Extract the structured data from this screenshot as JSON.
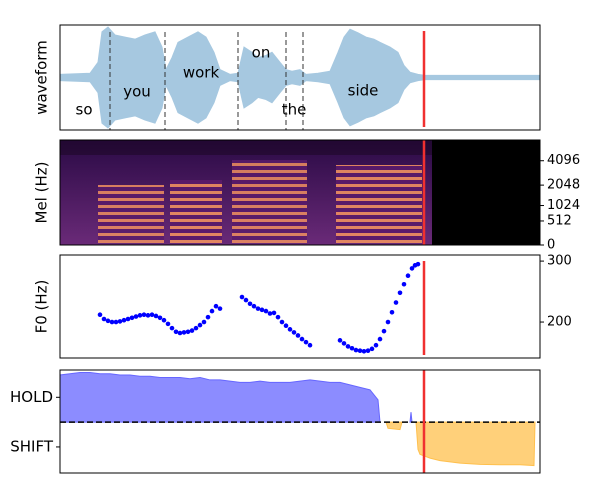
{
  "chart_data": [
    {
      "type": "waveform",
      "ylabel": "waveform",
      "color": "#a6c8e0",
      "xlim": [
        0,
        480
      ],
      "ylim": [
        -1,
        1
      ],
      "x": [
        0,
        30,
        38,
        42,
        48,
        55,
        65,
        75,
        85,
        95,
        102,
        106,
        112,
        118,
        128,
        138,
        146,
        154,
        160,
        170,
        178,
        184,
        192,
        198,
        206,
        212,
        220,
        226,
        232,
        240,
        246,
        258,
        270,
        278,
        284,
        290,
        298,
        306,
        314,
        320,
        330,
        338,
        344,
        350,
        358,
        365,
        480
      ],
      "values": [
        0.06,
        0.08,
        0.29,
        0.87,
        0.96,
        0.81,
        0.77,
        0.73,
        0.81,
        0.87,
        0.58,
        0.15,
        0.38,
        0.67,
        0.77,
        0.87,
        0.77,
        0.48,
        0.15,
        0.06,
        0.08,
        0.58,
        0.48,
        0.38,
        0.42,
        0.48,
        0.29,
        0.15,
        0.12,
        0.15,
        0.06,
        0.08,
        0.12,
        0.48,
        0.77,
        0.92,
        0.85,
        0.77,
        0.73,
        0.67,
        0.58,
        0.48,
        0.23,
        0.1,
        0.06,
        0.04,
        0.04
      ],
      "boundaries": [
        50,
        105,
        178,
        226,
        243
      ],
      "words": [
        {
          "text": "so",
          "x": 24
        },
        {
          "text": "you",
          "x": 77
        },
        {
          "text": "work",
          "x": 141
        },
        {
          "text": "on",
          "x": 201
        },
        {
          "text": "the",
          "x": 234
        },
        {
          "text": "side",
          "x": 303
        }
      ],
      "marker_x": 364,
      "marker_color": "#f03030"
    },
    {
      "type": "spectrogram",
      "ylabel": "Mel (Hz)",
      "xlim": [
        0,
        480
      ],
      "ylim": [
        0,
        7000
      ],
      "scale": "mel",
      "yticks": [
        0,
        512,
        1024,
        2048,
        4096
      ],
      "marker_x": 364,
      "marker_color": "#f03030"
    },
    {
      "type": "scatter",
      "ylabel": "F0 (Hz)",
      "color": "#0000ff",
      "xlim": [
        0,
        480
      ],
      "ylim": [
        141,
        310
      ],
      "yticks": [
        200,
        300
      ],
      "x": [
        40,
        44,
        48,
        52,
        56,
        60,
        64,
        68,
        72,
        76,
        80,
        84,
        88,
        92,
        96,
        100,
        104,
        108,
        112,
        116,
        120,
        124,
        128,
        132,
        136,
        140,
        144,
        148,
        152,
        156,
        160,
        182,
        186,
        190,
        194,
        198,
        202,
        206,
        210,
        214,
        218,
        222,
        226,
        230,
        234,
        238,
        242,
        246,
        250,
        280,
        284,
        288,
        292,
        296,
        300,
        304,
        308,
        312,
        316,
        320,
        324,
        328,
        332,
        336,
        340,
        344,
        348,
        352,
        355,
        358
      ],
      "values": [
        212,
        205,
        202,
        200,
        200,
        201,
        203,
        205,
        207,
        209,
        211,
        212,
        211,
        212,
        210,
        207,
        203,
        197,
        190,
        184,
        182,
        183,
        184,
        186,
        190,
        195,
        200,
        208,
        218,
        226,
        222,
        241,
        236,
        230,
        226,
        222,
        220,
        218,
        214,
        215,
        208,
        200,
        194,
        188,
        183,
        178,
        172,
        167,
        162,
        170,
        165,
        160,
        157,
        154,
        153,
        152,
        153,
        156,
        162,
        172,
        185,
        200,
        216,
        232,
        248,
        262,
        276,
        288,
        293,
        295
      ],
      "marker_x": 364,
      "marker_color": "#f03030"
    },
    {
      "type": "area",
      "xlim": [
        0,
        480
      ],
      "ylim": [
        -2.05,
        2.1
      ],
      "yticks": [
        {
          "value": 1,
          "label": "HOLD"
        },
        {
          "value": -1,
          "label": "SHIFT"
        }
      ],
      "hline": 0,
      "x": [
        0,
        10,
        20,
        30,
        40,
        50,
        60,
        70,
        80,
        90,
        100,
        110,
        120,
        130,
        140,
        150,
        160,
        170,
        180,
        190,
        200,
        210,
        220,
        230,
        240,
        250,
        260,
        270,
        280,
        290,
        300,
        310,
        318,
        320,
        326,
        328,
        340,
        342,
        350,
        351,
        352,
        356,
        358,
        360,
        370,
        380,
        390,
        400,
        420,
        440,
        460,
        474,
        475
      ],
      "series": [
        {
          "color": "#6666ff",
          "values": [
            1.9,
            1.95,
            2.0,
            2.0,
            1.95,
            1.95,
            1.9,
            1.9,
            1.85,
            1.85,
            1.8,
            1.8,
            1.8,
            1.75,
            1.8,
            1.7,
            1.7,
            1.65,
            1.6,
            1.6,
            1.65,
            1.6,
            1.6,
            1.6,
            1.65,
            1.7,
            1.65,
            1.6,
            1.6,
            1.5,
            1.4,
            1.3,
            0.9,
            0,
            null,
            null,
            null,
            null,
            0,
            0.4,
            0,
            null,
            null,
            null,
            null,
            null,
            null,
            null,
            null,
            null,
            null,
            null,
            null
          ]
        },
        {
          "color": "#ffc04d",
          "values": [
            null,
            null,
            null,
            null,
            null,
            null,
            null,
            null,
            null,
            null,
            null,
            null,
            null,
            null,
            null,
            null,
            null,
            null,
            null,
            null,
            null,
            null,
            null,
            null,
            null,
            null,
            null,
            null,
            null,
            null,
            null,
            null,
            null,
            null,
            0,
            -0.25,
            -0.3,
            0,
            null,
            null,
            null,
            0,
            -1.1,
            -1.3,
            -1.45,
            -1.55,
            -1.6,
            -1.65,
            -1.7,
            -1.72,
            -1.72,
            -1.75,
            0
          ]
        }
      ],
      "marker_x": 364,
      "marker_color": "#f03030"
    }
  ]
}
